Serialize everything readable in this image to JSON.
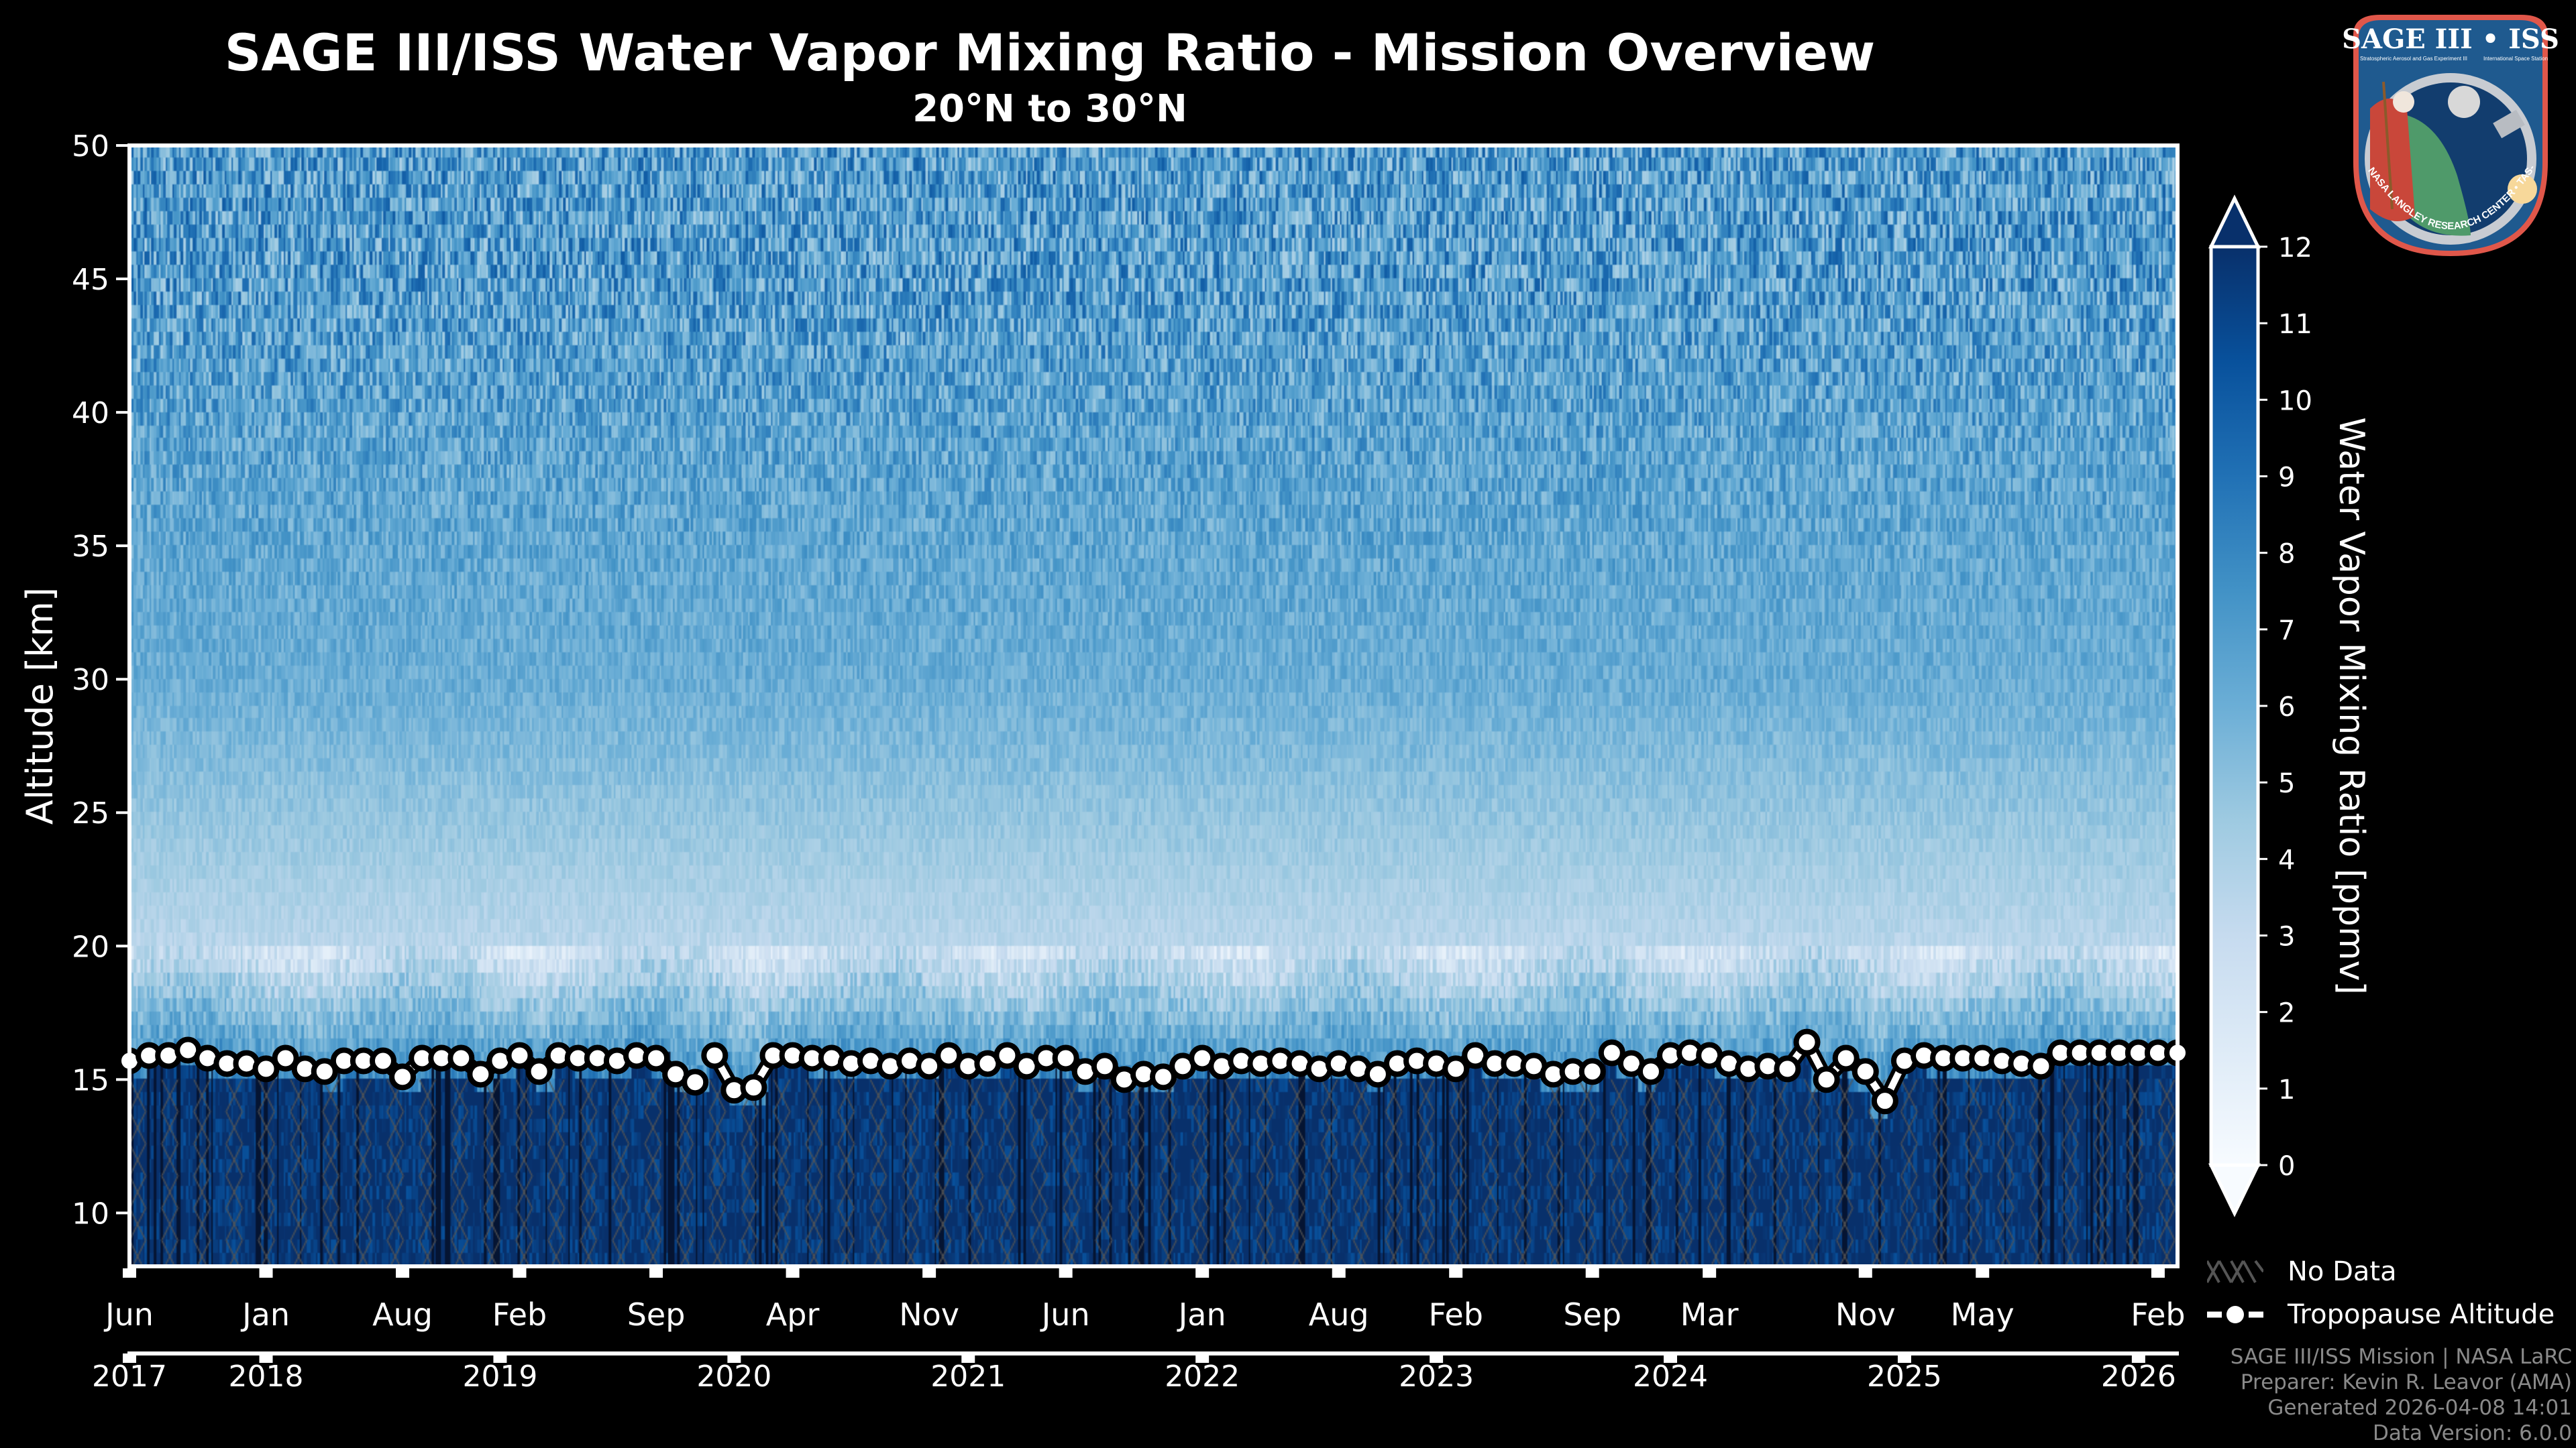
{
  "header": {
    "title": "SAGE III/ISS Water Vapor Mixing Ratio - Mission Overview",
    "subtitle": "20°N to 30°N"
  },
  "logo": {
    "main_text": "SAGE III • ISS",
    "left_caption": "Stratospheric Aerosol and Gas Experiment III",
    "right_caption": "International Space Station",
    "ring_text": "BALL • NASA LANGLEY RESEARCH CENTER • TAS-I • ESA",
    "colors": {
      "border": "#e0574a",
      "field": "#1f5a8f",
      "ring": "#c8ccd2",
      "space": "#123d6e",
      "land": "#4f9a6a",
      "robe": "#c9473a"
    }
  },
  "legend": {
    "items": [
      {
        "label": "No Data",
        "symbol": "hatch-x"
      },
      {
        "label": "Tropopause Altitude",
        "symbol": "line-marker"
      }
    ]
  },
  "footer": {
    "lines": [
      "SAGE III/ISS Mission | NASA LaRC",
      "Preparer: Kevin R. Leavor (AMA)",
      "Generated 2026-04-08 14:01",
      "Data Version: 6.0.0"
    ]
  },
  "chart_data": {
    "type": "heatmap",
    "title": "SAGE III/ISS Water Vapor Mixing Ratio - Mission Overview",
    "subtitle": "20°N to 30°N",
    "xlabel": "",
    "ylabel": "Altitude [km]",
    "x_range": [
      "2017-06",
      "2026-03"
    ],
    "ylim": [
      8,
      50
    ],
    "y_ticks": [
      10,
      15,
      20,
      25,
      30,
      35,
      40,
      45,
      50
    ],
    "x_month_ticks": [
      {
        "date": "2017-06",
        "label": "Jun"
      },
      {
        "date": "2018-01",
        "label": "Jan"
      },
      {
        "date": "2018-08",
        "label": "Aug"
      },
      {
        "date": "2019-02",
        "label": "Feb"
      },
      {
        "date": "2019-09",
        "label": "Sep"
      },
      {
        "date": "2020-04",
        "label": "Apr"
      },
      {
        "date": "2020-11",
        "label": "Nov"
      },
      {
        "date": "2021-06",
        "label": "Jun"
      },
      {
        "date": "2022-01",
        "label": "Jan"
      },
      {
        "date": "2022-08",
        "label": "Aug"
      },
      {
        "date": "2023-02",
        "label": "Feb"
      },
      {
        "date": "2023-09",
        "label": "Sep"
      },
      {
        "date": "2024-03",
        "label": "Mar"
      },
      {
        "date": "2024-11",
        "label": "Nov"
      },
      {
        "date": "2025-05",
        "label": "May"
      },
      {
        "date": "2026-02",
        "label": "Feb"
      }
    ],
    "x_year_ticks": [
      {
        "date": "2017-06",
        "label": "2017"
      },
      {
        "date": "2018-01",
        "label": "2018"
      },
      {
        "date": "2019-01",
        "label": "2019"
      },
      {
        "date": "2020-01",
        "label": "2020"
      },
      {
        "date": "2021-01",
        "label": "2021"
      },
      {
        "date": "2022-01",
        "label": "2022"
      },
      {
        "date": "2023-01",
        "label": "2023"
      },
      {
        "date": "2024-01",
        "label": "2024"
      },
      {
        "date": "2025-01",
        "label": "2025"
      },
      {
        "date": "2026-01",
        "label": "2026"
      }
    ],
    "colorbar": {
      "label": "Water Vapor Mixing Ratio [ppmv]",
      "range": [
        0,
        12
      ],
      "ticks": [
        0,
        1,
        2,
        3,
        4,
        5,
        6,
        7,
        8,
        9,
        10,
        11,
        12
      ],
      "extend": "both",
      "colormap": "Blues",
      "colors": [
        "#f7fbff",
        "#deebf7",
        "#c6dbef",
        "#9ecae1",
        "#6baed6",
        "#4292c6",
        "#2171b5",
        "#08519c",
        "#08306b"
      ]
    },
    "field_description": {
      "troposphere_below_tropopause_ppmv": 12,
      "hygropause_min_ppmv": 2.5,
      "hygropause_altitude_km": 18,
      "stratosphere_30km_ppmv": 5.5,
      "upper_stratosphere_45km_ppmv": 7,
      "upper_noise_ppmv": 3.5
    },
    "no_data_hatch": {
      "label": "No Data",
      "color": "#555555"
    },
    "series": [
      {
        "name": "Tropopause Altitude",
        "unit": "km",
        "x": [
          "2017-06",
          "2017-07",
          "2017-08",
          "2017-09",
          "2017-10",
          "2017-11",
          "2017-12",
          "2018-01",
          "2018-02",
          "2018-03",
          "2018-04",
          "2018-05",
          "2018-06",
          "2018-07",
          "2018-08",
          "2018-09",
          "2018-10",
          "2018-11",
          "2018-12",
          "2019-01",
          "2019-02",
          "2019-03",
          "2019-04",
          "2019-05",
          "2019-06",
          "2019-07",
          "2019-08",
          "2019-09",
          "2019-10",
          "2019-11",
          "2019-12",
          "2020-01",
          "2020-02",
          "2020-03",
          "2020-04",
          "2020-05",
          "2020-06",
          "2020-07",
          "2020-08",
          "2020-09",
          "2020-10",
          "2020-11",
          "2020-12",
          "2021-01",
          "2021-02",
          "2021-03",
          "2021-04",
          "2021-05",
          "2021-06",
          "2021-07",
          "2021-08",
          "2021-09",
          "2021-10",
          "2021-11",
          "2021-12",
          "2022-01",
          "2022-02",
          "2022-03",
          "2022-04",
          "2022-05",
          "2022-06",
          "2022-07",
          "2022-08",
          "2022-09",
          "2022-10",
          "2022-11",
          "2022-12",
          "2023-01",
          "2023-02",
          "2023-03",
          "2023-04",
          "2023-05",
          "2023-06",
          "2023-07",
          "2023-08",
          "2023-09",
          "2023-10",
          "2023-11",
          "2023-12",
          "2024-01",
          "2024-02",
          "2024-03",
          "2024-04",
          "2024-05",
          "2024-06",
          "2024-07",
          "2024-08",
          "2024-09",
          "2024-10",
          "2024-11",
          "2024-12",
          "2025-01",
          "2025-02",
          "2025-03",
          "2025-04",
          "2025-05",
          "2025-06",
          "2025-07",
          "2025-08",
          "2025-09",
          "2025-10",
          "2025-11",
          "2025-12",
          "2026-01",
          "2026-02",
          "2026-03"
        ],
        "y": [
          15.7,
          15.9,
          15.9,
          16.1,
          15.8,
          15.6,
          15.6,
          15.4,
          15.8,
          15.4,
          15.3,
          15.7,
          15.7,
          15.7,
          15.1,
          15.8,
          15.8,
          15.8,
          15.2,
          15.7,
          15.9,
          15.3,
          15.9,
          15.8,
          15.8,
          15.7,
          15.9,
          15.8,
          15.2,
          14.9,
          15.9,
          14.6,
          14.7,
          15.9,
          15.9,
          15.8,
          15.8,
          15.6,
          15.7,
          15.5,
          15.7,
          15.5,
          15.9,
          15.5,
          15.6,
          15.9,
          15.5,
          15.8,
          15.8,
          15.3,
          15.5,
          15.0,
          15.2,
          15.1,
          15.5,
          15.8,
          15.5,
          15.7,
          15.6,
          15.7,
          15.6,
          15.4,
          15.6,
          15.4,
          15.2,
          15.6,
          15.7,
          15.6,
          15.4,
          15.9,
          15.6,
          15.6,
          15.5,
          15.2,
          15.3,
          15.3,
          16.0,
          15.6,
          15.3,
          15.9,
          16.0,
          15.9,
          15.6,
          15.4,
          15.5,
          15.4,
          16.4,
          15.0,
          15.8,
          15.3,
          14.2,
          15.7,
          15.9,
          15.8,
          15.8,
          15.8,
          15.7,
          15.6,
          15.5,
          16.0,
          16.0,
          16.0,
          16.0,
          16.0,
          16.0,
          16.0
        ],
        "gaps_after": [
          "2019-11",
          "2023-09",
          "2024-01",
          "2025-02",
          "2025-12"
        ]
      }
    ],
    "legend": [
      "No Data",
      "Tropopause Altitude"
    ],
    "legend_position": "right-bottom",
    "grid": false
  }
}
